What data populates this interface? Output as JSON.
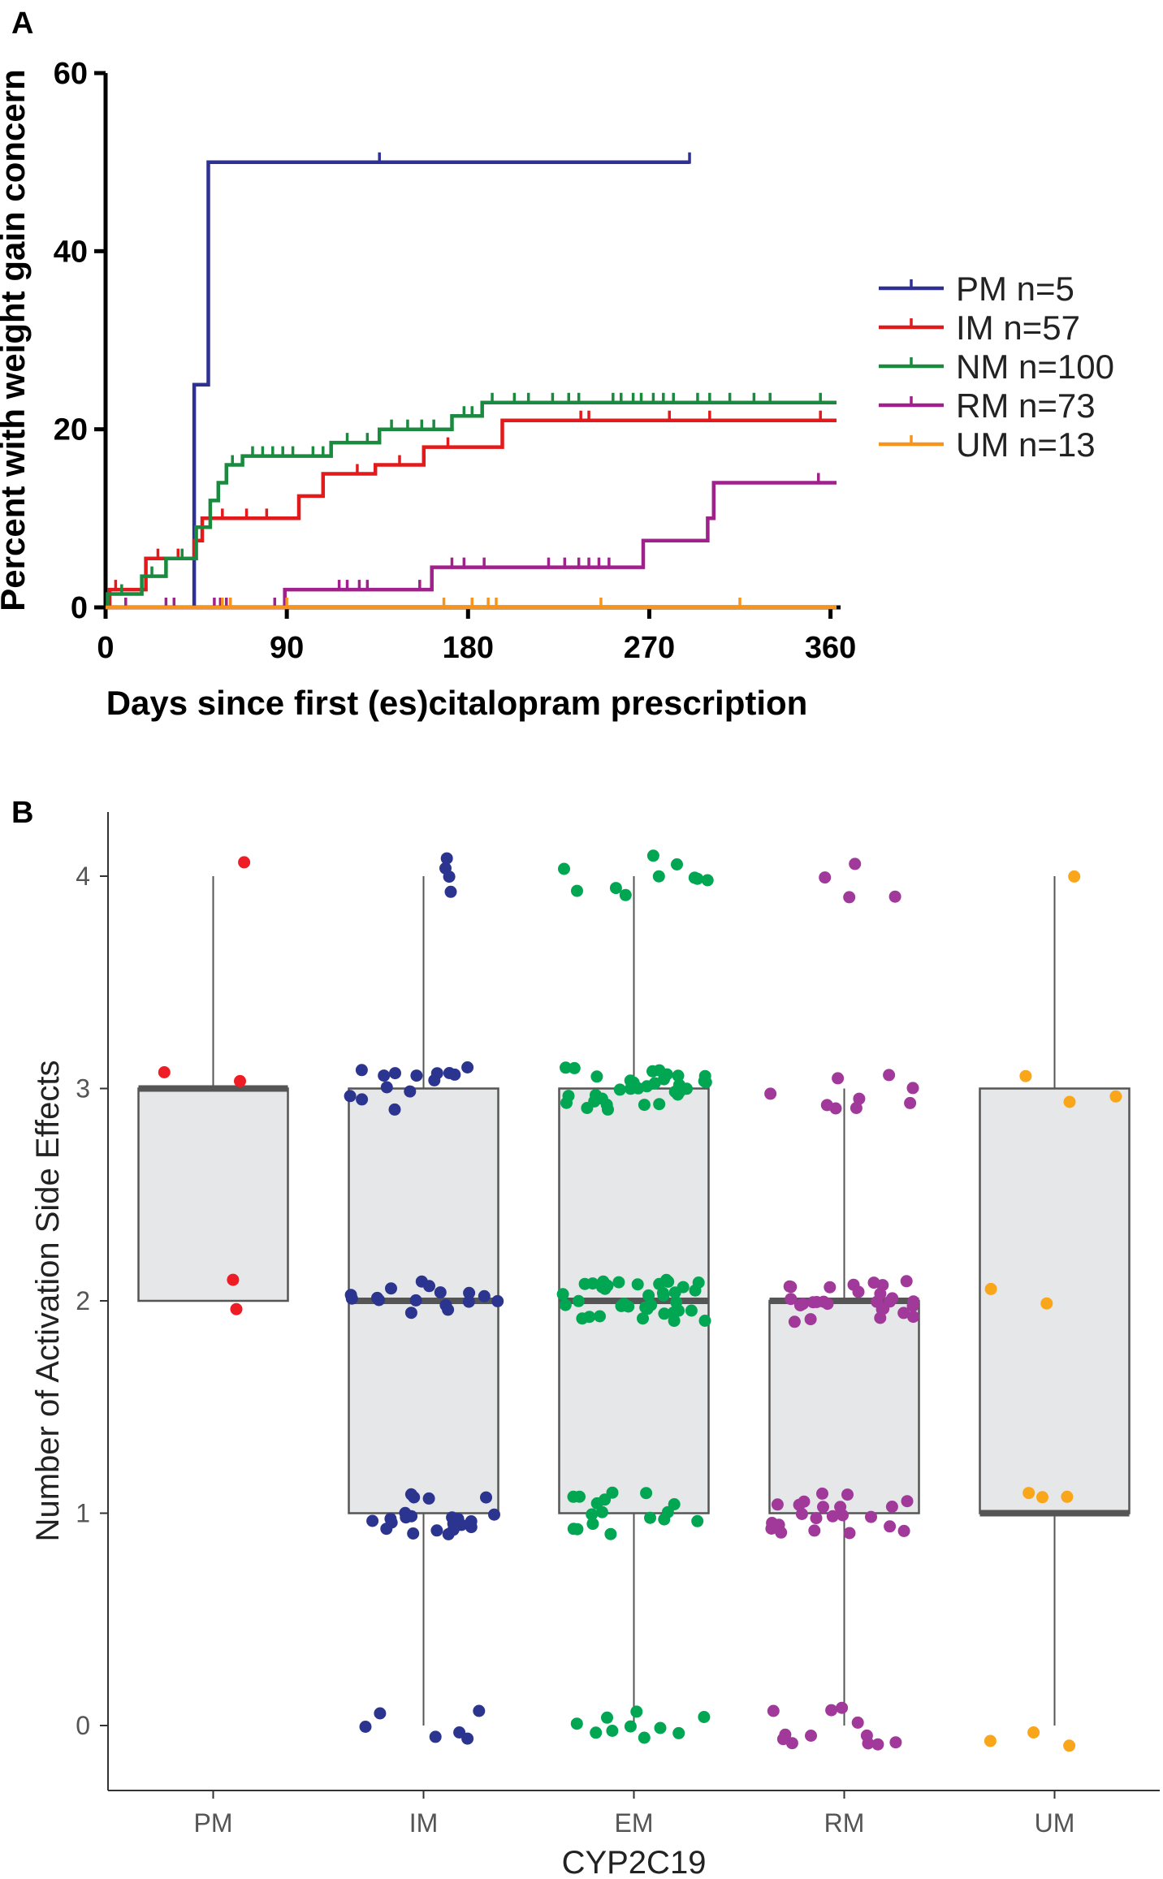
{
  "chart_data": [
    {
      "panel": "A",
      "type": "line",
      "subtype": "kaplan-meier-step",
      "xlabel": "Days since first (es)citalopram prescription",
      "ylabel": "Percent with weight gain concern",
      "xlim": [
        0,
        365
      ],
      "ylim": [
        0,
        60
      ],
      "xticks": [
        0,
        90,
        180,
        270,
        360
      ],
      "yticks": [
        0,
        20,
        40,
        60
      ],
      "legend_position": "right",
      "series": [
        {
          "name": "PM n=5",
          "color": "#2E3192",
          "steps": [
            [
              0,
              0
            ],
            [
              44,
              0
            ],
            [
              44,
              25
            ],
            [
              51,
              25
            ],
            [
              51,
              50
            ],
            [
              290,
              50
            ]
          ],
          "censor": [
            [
              136,
              50
            ],
            [
              290,
              50
            ]
          ]
        },
        {
          "name": "IM n=57",
          "color": "#E31A1C",
          "steps": [
            [
              0,
              0
            ],
            [
              2,
              0
            ],
            [
              2,
              2
            ],
            [
              20,
              2
            ],
            [
              20,
              5.5
            ],
            [
              44,
              5.5
            ],
            [
              44,
              7.5
            ],
            [
              48,
              7.5
            ],
            [
              48,
              10
            ],
            [
              96,
              10
            ],
            [
              96,
              12.5
            ],
            [
              108,
              12.5
            ],
            [
              108,
              15
            ],
            [
              134,
              15
            ],
            [
              134,
              16
            ],
            [
              158,
              16
            ],
            [
              158,
              18
            ],
            [
              197,
              18
            ],
            [
              197,
              21
            ],
            [
              363,
              21
            ]
          ],
          "censor": [
            [
              5,
              2
            ],
            [
              26,
              5.5
            ],
            [
              36,
              5.5
            ],
            [
              58,
              10
            ],
            [
              70,
              10
            ],
            [
              80,
              10
            ],
            [
              125,
              15
            ],
            [
              146,
              16
            ],
            [
              170,
              18
            ],
            [
              236,
              21
            ],
            [
              240,
              21
            ],
            [
              280,
              21
            ],
            [
              300,
              21
            ],
            [
              355,
              21
            ]
          ]
        },
        {
          "name": "NM n=100",
          "color": "#1A8A3F",
          "steps": [
            [
              0,
              0
            ],
            [
              1,
              0
            ],
            [
              1,
              1.5
            ],
            [
              18,
              1.5
            ],
            [
              18,
              3.5
            ],
            [
              30,
              3.5
            ],
            [
              30,
              5.5
            ],
            [
              45,
              5.5
            ],
            [
              45,
              9
            ],
            [
              52,
              9
            ],
            [
              52,
              12
            ],
            [
              56,
              12
            ],
            [
              56,
              14
            ],
            [
              60,
              14
            ],
            [
              60,
              16
            ],
            [
              68,
              16
            ],
            [
              68,
              17
            ],
            [
              112,
              17
            ],
            [
              112,
              18.5
            ],
            [
              136,
              18.5
            ],
            [
              136,
              20
            ],
            [
              172,
              20
            ],
            [
              172,
              21.5
            ],
            [
              187,
              21.5
            ],
            [
              187,
              23
            ],
            [
              363,
              23
            ]
          ],
          "censor": [
            [
              8,
              1.5
            ],
            [
              23,
              3.5
            ],
            [
              38,
              5.5
            ],
            [
              63,
              16
            ],
            [
              73,
              17
            ],
            [
              78,
              17
            ],
            [
              83,
              17
            ],
            [
              88,
              17
            ],
            [
              93,
              17
            ],
            [
              103,
              17
            ],
            [
              108,
              17
            ],
            [
              120,
              18.5
            ],
            [
              130,
              18.5
            ],
            [
              142,
              20
            ],
            [
              150,
              20
            ],
            [
              157,
              20
            ],
            [
              163,
              20
            ],
            [
              178,
              21.5
            ],
            [
              182,
              21.5
            ],
            [
              192,
              23
            ],
            [
              203,
              23
            ],
            [
              210,
              23
            ],
            [
              222,
              23
            ],
            [
              230,
              23
            ],
            [
              235,
              23
            ],
            [
              252,
              23
            ],
            [
              256,
              23
            ],
            [
              262,
              23
            ],
            [
              266,
              23
            ],
            [
              272,
              23
            ],
            [
              277,
              23
            ],
            [
              282,
              23
            ],
            [
              294,
              23
            ],
            [
              300,
              23
            ],
            [
              310,
              23
            ],
            [
              322,
              23
            ],
            [
              330,
              23
            ],
            [
              355,
              23
            ]
          ]
        },
        {
          "name": "RM n=73",
          "color": "#A0208C",
          "steps": [
            [
              0,
              0
            ],
            [
              89,
              0
            ],
            [
              89,
              2
            ],
            [
              162,
              2
            ],
            [
              162,
              4.5
            ],
            [
              267,
              4.5
            ],
            [
              267,
              7.5
            ],
            [
              299,
              7.5
            ],
            [
              299,
              10
            ],
            [
              302,
              10
            ],
            [
              302,
              14
            ],
            [
              363,
              14
            ]
          ],
          "censor": [
            [
              10,
              0
            ],
            [
              30,
              0
            ],
            [
              34,
              0
            ],
            [
              54,
              0
            ],
            [
              57,
              0
            ],
            [
              60,
              0
            ],
            [
              84,
              0
            ],
            [
              116,
              2
            ],
            [
              120,
              2
            ],
            [
              126,
              2
            ],
            [
              130,
              2
            ],
            [
              156,
              2
            ],
            [
              172,
              4.5
            ],
            [
              178,
              4.5
            ],
            [
              188,
              4.5
            ],
            [
              220,
              4.5
            ],
            [
              228,
              4.5
            ],
            [
              235,
              4.5
            ],
            [
              240,
              4.5
            ],
            [
              245,
              4.5
            ],
            [
              250,
              4.5
            ],
            [
              354,
              14
            ]
          ]
        },
        {
          "name": "UM n=13",
          "color": "#F7941D",
          "steps": [
            [
              0,
              0
            ],
            [
              363,
              0
            ]
          ],
          "censor": [
            [
              58,
              0
            ],
            [
              62,
              0
            ],
            [
              90,
              0
            ],
            [
              168,
              0
            ],
            [
              182,
              0
            ],
            [
              190,
              0
            ],
            [
              194,
              0
            ],
            [
              246,
              0
            ],
            [
              315,
              0
            ]
          ]
        }
      ]
    },
    {
      "panel": "B",
      "type": "boxplot",
      "subtype": "box-with-jitter",
      "xlabel": "CYP2C19",
      "ylabel": "Number of Activation Side Effects",
      "ylim": [
        -0.3,
        4.2
      ],
      "yticks": [
        0,
        1,
        2,
        3,
        4
      ],
      "categories": [
        "PM",
        "IM",
        "EM",
        "RM",
        "UM"
      ],
      "boxes": [
        {
          "group": "PM",
          "min": 2,
          "q1": 2,
          "median": 3,
          "q3": 3,
          "max": 4
        },
        {
          "group": "IM",
          "min": 0,
          "q1": 1,
          "median": 2,
          "q3": 3,
          "max": 4
        },
        {
          "group": "EM",
          "min": 0,
          "q1": 1,
          "median": 2,
          "q3": 3,
          "max": 4
        },
        {
          "group": "RM",
          "min": 0,
          "q1": 1,
          "median": 2,
          "q3": 2,
          "max": 3
        },
        {
          "group": "UM",
          "min": 0,
          "q1": 1,
          "median": 1,
          "q3": 3,
          "max": 4
        }
      ],
      "points": [
        {
          "group": "PM",
          "color": "#EE1C25",
          "counts": {
            "0": 0,
            "1": 0,
            "2": 2,
            "3": 2,
            "4": 1
          }
        },
        {
          "group": "IM",
          "color": "#2B3590",
          "counts": {
            "0": 6,
            "1": 22,
            "2": 16,
            "3": 14,
            "4": 4
          }
        },
        {
          "group": "EM",
          "color": "#00A651",
          "counts": {
            "0": 10,
            "1": 17,
            "2": 38,
            "3": 33,
            "4": 10
          }
        },
        {
          "group": "RM",
          "color": "#A0399A",
          "counts": {
            "0": 12,
            "1": 22,
            "2": 28,
            "3": 9,
            "4": 4
          }
        },
        {
          "group": "UM",
          "color": "#F9A61A",
          "counts": {
            "0": 3,
            "1": 3,
            "2": 2,
            "3": 3,
            "4": 1
          }
        }
      ]
    }
  ]
}
